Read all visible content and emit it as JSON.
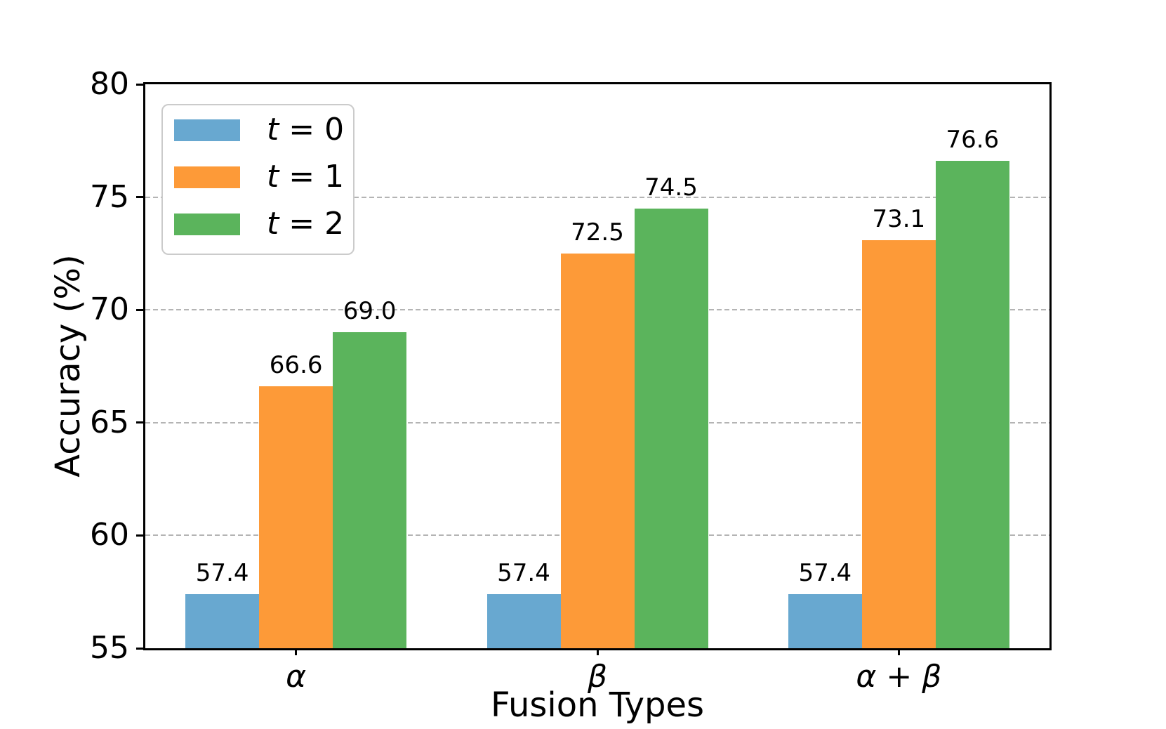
{
  "chart_data": {
    "type": "bar",
    "title": "",
    "xlabel": "Fusion Types",
    "ylabel": "Accuracy (%)",
    "categories": [
      "α",
      "β",
      "α + β"
    ],
    "series": [
      {
        "name": "t = 0",
        "var": "t",
        "eq_value": "0",
        "color": "#68a8d0",
        "values": [
          57.4,
          57.4,
          57.4
        ],
        "labels": [
          "57.4",
          "57.4",
          "57.4"
        ]
      },
      {
        "name": "t = 1",
        "var": "t",
        "eq_value": "1",
        "color": "#fd9a38",
        "values": [
          66.6,
          72.5,
          73.1
        ],
        "labels": [
          "66.6",
          "72.5",
          "73.1"
        ]
      },
      {
        "name": "t = 2",
        "var": "t",
        "eq_value": "2",
        "color": "#5bb45c",
        "values": [
          69.0,
          74.5,
          76.6
        ],
        "labels": [
          "69.0",
          "74.5",
          "76.6"
        ]
      }
    ],
    "ylim": [
      55,
      80
    ],
    "yticks": [
      55,
      60,
      65,
      70,
      75,
      80
    ],
    "gridlines_at": [
      60,
      65,
      70,
      75
    ],
    "grid": "horizontal-dashed",
    "legend_position": "upper-left",
    "axis_color": "#000000",
    "grid_color": "#b4b4b4"
  }
}
